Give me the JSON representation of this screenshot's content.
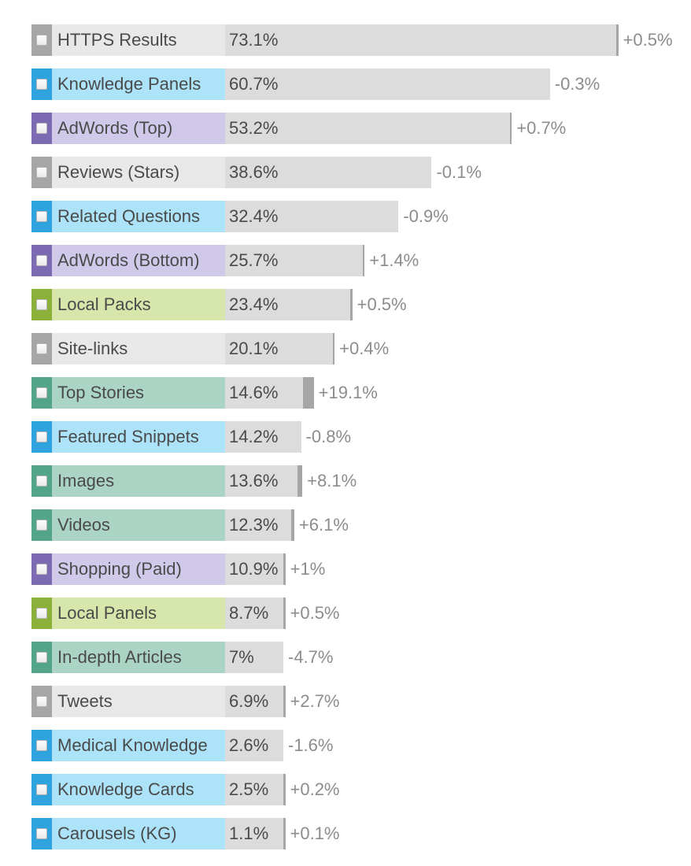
{
  "chart_data": {
    "type": "bar",
    "orientation": "horizontal",
    "xlim": [
      0,
      100
    ],
    "categories": [
      "HTTPS Results",
      "Knowledge Panels",
      "AdWords (Top)",
      "Reviews (Stars)",
      "Related Questions",
      "AdWords (Bottom)",
      "Local Packs",
      "Site-links",
      "Top Stories",
      "Featured Snippets",
      "Images",
      "Videos",
      "Shopping (Paid)",
      "Local Panels",
      "In-depth Articles",
      "Tweets",
      "Medical Knowledge",
      "Knowledge Cards",
      "Carousels (KG)"
    ],
    "values": [
      73.1,
      60.7,
      53.2,
      38.6,
      32.4,
      25.7,
      23.4,
      20.1,
      14.6,
      14.2,
      13.6,
      12.3,
      10.9,
      8.7,
      7,
      6.9,
      2.6,
      2.5,
      1.1
    ],
    "value_labels": [
      "73.1%",
      "60.7%",
      "53.2%",
      "38.6%",
      "32.4%",
      "25.7%",
      "23.4%",
      "20.1%",
      "14.6%",
      "14.2%",
      "13.6%",
      "12.3%",
      "10.9%",
      "8.7%",
      "7%",
      "6.9%",
      "2.6%",
      "2.5%",
      "1.1%"
    ],
    "changes": [
      0.5,
      -0.3,
      0.7,
      -0.1,
      -0.9,
      1.4,
      0.5,
      0.4,
      19.1,
      -0.8,
      8.1,
      6.1,
      1,
      0.5,
      -4.7,
      2.7,
      -1.6,
      0.2,
      0.1
    ],
    "change_labels": [
      "+0.5%",
      "-0.3%",
      "+0.7%",
      "-0.1%",
      "-0.9%",
      "+1.4%",
      "+0.5%",
      "+0.4%",
      "+19.1%",
      "-0.8%",
      "+8.1%",
      "+6.1%",
      "+1%",
      "+0.5%",
      "-4.7%",
      "+2.7%",
      "-1.6%",
      "+0.2%",
      "+0.1%"
    ],
    "groups": [
      "gray",
      "blue",
      "purple",
      "gray",
      "blue",
      "purple",
      "green",
      "gray",
      "teal",
      "blue",
      "teal",
      "teal",
      "purple",
      "green",
      "teal",
      "gray",
      "blue",
      "blue",
      "blue"
    ],
    "group_colors": {
      "gray": {
        "swatch": "#a6a6a6",
        "label_bg": "#e8e8e8"
      },
      "blue": {
        "swatch": "#2ea3dd",
        "label_bg": "#ade3f8"
      },
      "purple": {
        "swatch": "#7c6bb3",
        "label_bg": "#d0c9ea"
      },
      "green": {
        "swatch": "#8bb13a",
        "label_bg": "#d7e6ab"
      },
      "teal": {
        "swatch": "#52a588",
        "label_bg": "#abd4c5"
      }
    },
    "bar_color": "#dcdcdc",
    "change_marker_color": "#a6a6a6"
  }
}
